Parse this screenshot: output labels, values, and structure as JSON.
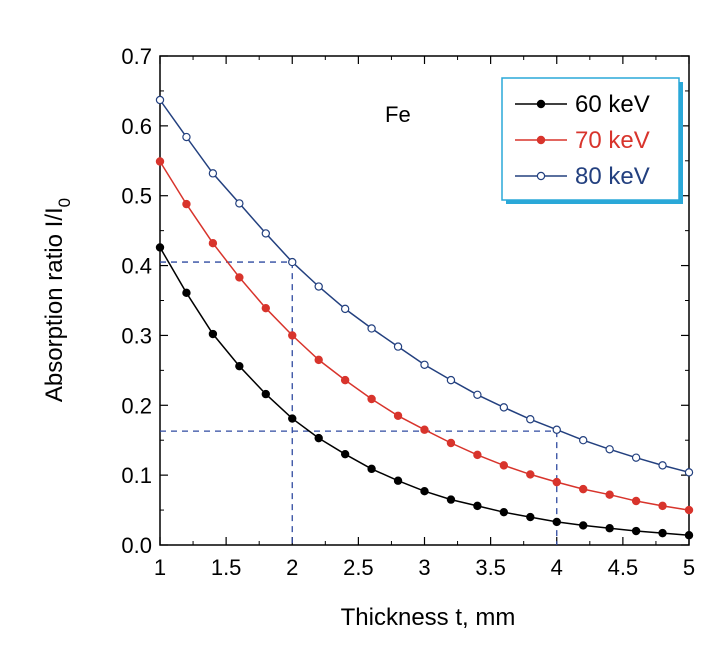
{
  "chart_data": {
    "type": "line",
    "xlabel": "Thickness t, mm",
    "ylabel_main": "Absorption ratio I/I",
    "ylabel_sub": "0",
    "xlim": [
      1,
      5
    ],
    "ylim": [
      0,
      0.7
    ],
    "x_ticks": [
      "1",
      "1.5",
      "2",
      "2.5",
      "3",
      "3.5",
      "4",
      "4.5",
      "5"
    ],
    "y_ticks": [
      "0.0",
      "0.1",
      "0.2",
      "0.3",
      "0.4",
      "0.5",
      "0.6",
      "0.7"
    ],
    "grid": false,
    "legend_position": "top-right",
    "annotation": "Fe",
    "x": [
      1.0,
      1.2,
      1.4,
      1.6,
      1.8,
      2.0,
      2.2,
      2.4,
      2.6,
      2.8,
      3.0,
      3.2,
      3.4,
      3.6,
      3.8,
      4.0,
      4.2,
      4.4,
      4.6,
      4.8,
      5.0
    ],
    "series": [
      {
        "name": "60 keV",
        "color": "#000000",
        "marker": "filled",
        "values": [
          0.426,
          0.361,
          0.302,
          0.256,
          0.216,
          0.181,
          0.153,
          0.13,
          0.109,
          0.092,
          0.077,
          0.065,
          0.056,
          0.047,
          0.04,
          0.033,
          0.028,
          0.024,
          0.02,
          0.017,
          0.014
        ]
      },
      {
        "name": "70 keV",
        "color": "#d8342c",
        "marker": "filled",
        "values": [
          0.549,
          0.488,
          0.432,
          0.383,
          0.339,
          0.3,
          0.265,
          0.236,
          0.209,
          0.185,
          0.165,
          0.146,
          0.129,
          0.114,
          0.101,
          0.09,
          0.08,
          0.072,
          0.063,
          0.056,
          0.05
        ]
      },
      {
        "name": "80 keV",
        "color": "#23407f",
        "marker": "open",
        "values": [
          0.637,
          0.584,
          0.532,
          0.489,
          0.446,
          0.405,
          0.37,
          0.338,
          0.31,
          0.284,
          0.258,
          0.236,
          0.215,
          0.197,
          0.18,
          0.165,
          0.15,
          0.137,
          0.125,
          0.114,
          0.104
        ]
      }
    ],
    "reference_lines": [
      {
        "from": [
          1,
          0.405
        ],
        "to": [
          2,
          0.405
        ]
      },
      {
        "from": [
          2,
          0.405
        ],
        "to": [
          2,
          0
        ]
      },
      {
        "from": [
          1,
          0.163
        ],
        "to": [
          4,
          0.163
        ]
      },
      {
        "from": [
          4,
          0.163
        ],
        "to": [
          4,
          0
        ]
      }
    ],
    "reference_color": "#2f4aa0",
    "legend_border_color": "#2aa8d8"
  }
}
